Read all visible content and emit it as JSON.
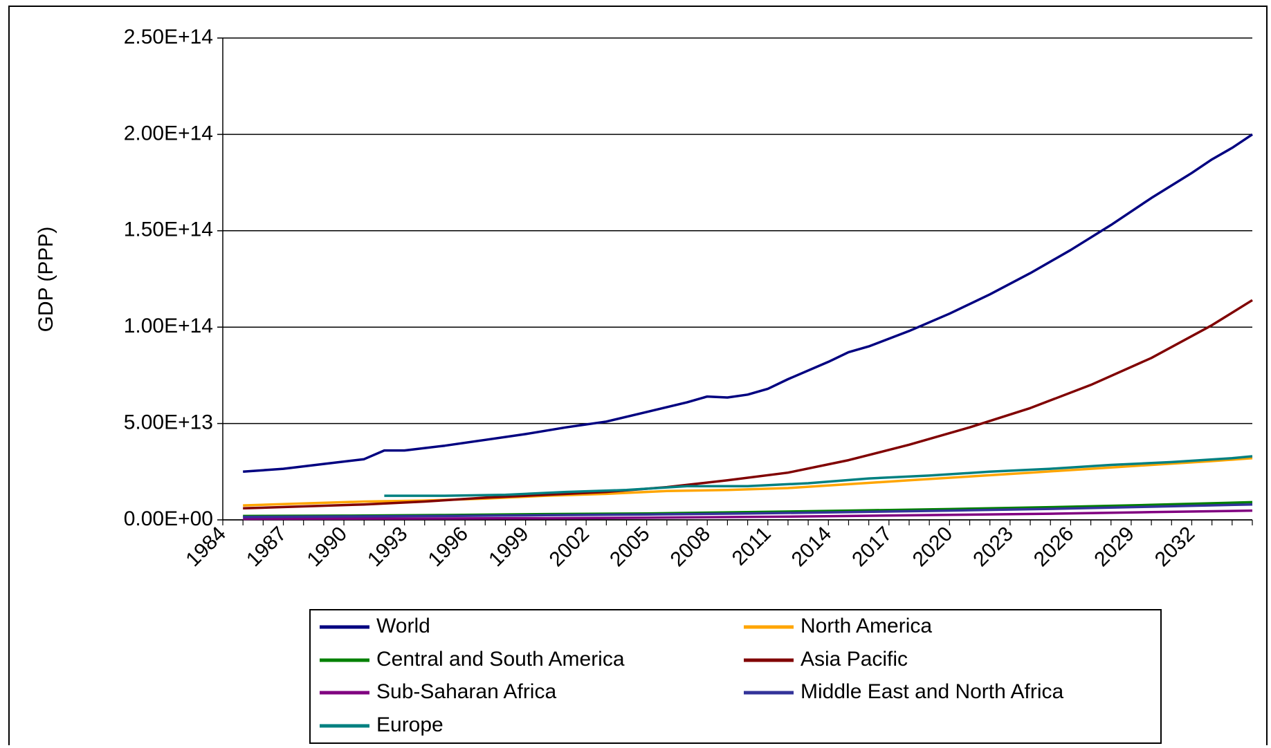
{
  "chart_data": {
    "type": "line",
    "title": "",
    "xlabel": "",
    "ylabel": "GDP (PPP)",
    "xlim": [
      1984,
      2035
    ],
    "ylim": [
      0,
      250000000000000.0
    ],
    "y_ticks": [
      "0.00E+00",
      "5.00E+13",
      "1.00E+14",
      "1.50E+14",
      "2.00E+14",
      "2.50E+14"
    ],
    "x_ticks": [
      "1984",
      "1987",
      "1990",
      "1993",
      "1996",
      "1999",
      "2002",
      "2005",
      "2008",
      "2011",
      "2014",
      "2017",
      "2020",
      "2023",
      "2026",
      "2029",
      "2032"
    ],
    "grid": "horizontal",
    "legend_position": "bottom",
    "series": [
      {
        "name": "World",
        "color": "#000080",
        "x": [
          1985,
          1987,
          1989,
          1991,
          1992,
          1993,
          1995,
          1997,
          1999,
          2001,
          2003,
          2005,
          2007,
          2008,
          2009,
          2010,
          2011,
          2012,
          2014,
          2015,
          2016,
          2018,
          2020,
          2022,
          2024,
          2026,
          2028,
          2030,
          2032,
          2033,
          2034,
          2035
        ],
        "values": [
          25000000000000.0,
          26500000000000.0,
          29000000000000.0,
          31500000000000.0,
          36000000000000.0,
          36000000000000.0,
          38500000000000.0,
          41500000000000.0,
          44500000000000.0,
          48000000000000.0,
          51000000000000.0,
          56000000000000.0,
          61000000000000.0,
          64000000000000.0,
          63500000000000.0,
          65000000000000.0,
          68000000000000.0,
          73000000000000.0,
          82000000000000.0,
          87000000000000.0,
          90000000000000.0,
          98000000000000.0,
          107000000000000.0,
          117000000000000.0,
          128000000000000.0,
          140000000000000.0,
          153000000000000.0,
          167000000000000.0,
          180000000000000.0,
          187000000000000.0,
          193000000000000.0,
          200000000000000.0
        ]
      },
      {
        "name": "North America",
        "color": "#FFA500",
        "x": [
          1985,
          1988,
          1991,
          1994,
          1997,
          2000,
          2003,
          2006,
          2009,
          2012,
          2015,
          2018,
          2021,
          2024,
          2027,
          2030,
          2033,
          2035
        ],
        "values": [
          7500000000000.0,
          8500000000000.0,
          9500000000000.0,
          10000000000000.0,
          11000000000000.0,
          12500000000000.0,
          13500000000000.0,
          15000000000000.0,
          15500000000000.0,
          16500000000000.0,
          18500000000000.0,
          20500000000000.0,
          22500000000000.0,
          24500000000000.0,
          26500000000000.0,
          28500000000000.0,
          30500000000000.0,
          32000000000000.0
        ]
      },
      {
        "name": "Central and South America",
        "color": "#008000",
        "x": [
          1985,
          1990,
          1995,
          2000,
          2005,
          2010,
          2015,
          2020,
          2025,
          2030,
          2035
        ],
        "values": [
          2000000000000.0,
          2200000000000.0,
          2500000000000.0,
          3000000000000.0,
          3300000000000.0,
          4000000000000.0,
          4800000000000.0,
          5600000000000.0,
          6600000000000.0,
          7800000000000.0,
          9200000000000.0
        ]
      },
      {
        "name": "Asia Pacific",
        "color": "#800000",
        "x": [
          1985,
          1988,
          1991,
          1994,
          1997,
          2000,
          2003,
          2006,
          2009,
          2012,
          2015,
          2018,
          2021,
          2024,
          2027,
          2030,
          2033,
          2035
        ],
        "values": [
          6000000000000.0,
          7000000000000.0,
          8000000000000.0,
          9500000000000.0,
          11500000000000.0,
          13000000000000.0,
          14500000000000.0,
          17000000000000.0,
          20500000000000.0,
          24500000000000.0,
          31000000000000.0,
          39000000000000.0,
          48000000000000.0,
          58000000000000.0,
          70000000000000.0,
          84000000000000.0,
          101000000000000.0,
          114000000000000.0
        ]
      },
      {
        "name": "Sub-Saharan Africa",
        "color": "#800080",
        "x": [
          1985,
          1990,
          1995,
          2000,
          2005,
          2010,
          2015,
          2020,
          2025,
          2030,
          2035
        ],
        "values": [
          500000000000.0,
          600000000000.0,
          700000000000.0,
          850000000000.0,
          1100000000000.0,
          1500000000000.0,
          2000000000000.0,
          2600000000000.0,
          3200000000000.0,
          4000000000000.0,
          4800000000000.0
        ]
      },
      {
        "name": "Middle East and North Africa",
        "color": "#333399",
        "x": [
          1985,
          1990,
          1995,
          2000,
          2005,
          2010,
          2015,
          2020,
          2025,
          2030,
          2035
        ],
        "values": [
          1500000000000.0,
          1800000000000.0,
          2000000000000.0,
          2400000000000.0,
          2800000000000.0,
          3300000000000.0,
          4000000000000.0,
          4800000000000.0,
          5700000000000.0,
          6800000000000.0,
          8000000000000.0
        ]
      },
      {
        "name": "Europe",
        "color": "#008080",
        "x": [
          1992,
          1995,
          1998,
          2001,
          2004,
          2007,
          2010,
          2013,
          2016,
          2019,
          2022,
          2025,
          2028,
          2031,
          2034,
          2035
        ],
        "values": [
          12500000000000.0,
          12500000000000.0,
          13000000000000.0,
          14500000000000.0,
          15500000000000.0,
          17500000000000.0,
          17500000000000.0,
          19000000000000.0,
          21500000000000.0,
          23000000000000.0,
          25000000000000.0,
          26500000000000.0,
          28500000000000.0,
          30000000000000.0,
          32000000000000.0,
          33000000000000.0
        ]
      }
    ]
  }
}
